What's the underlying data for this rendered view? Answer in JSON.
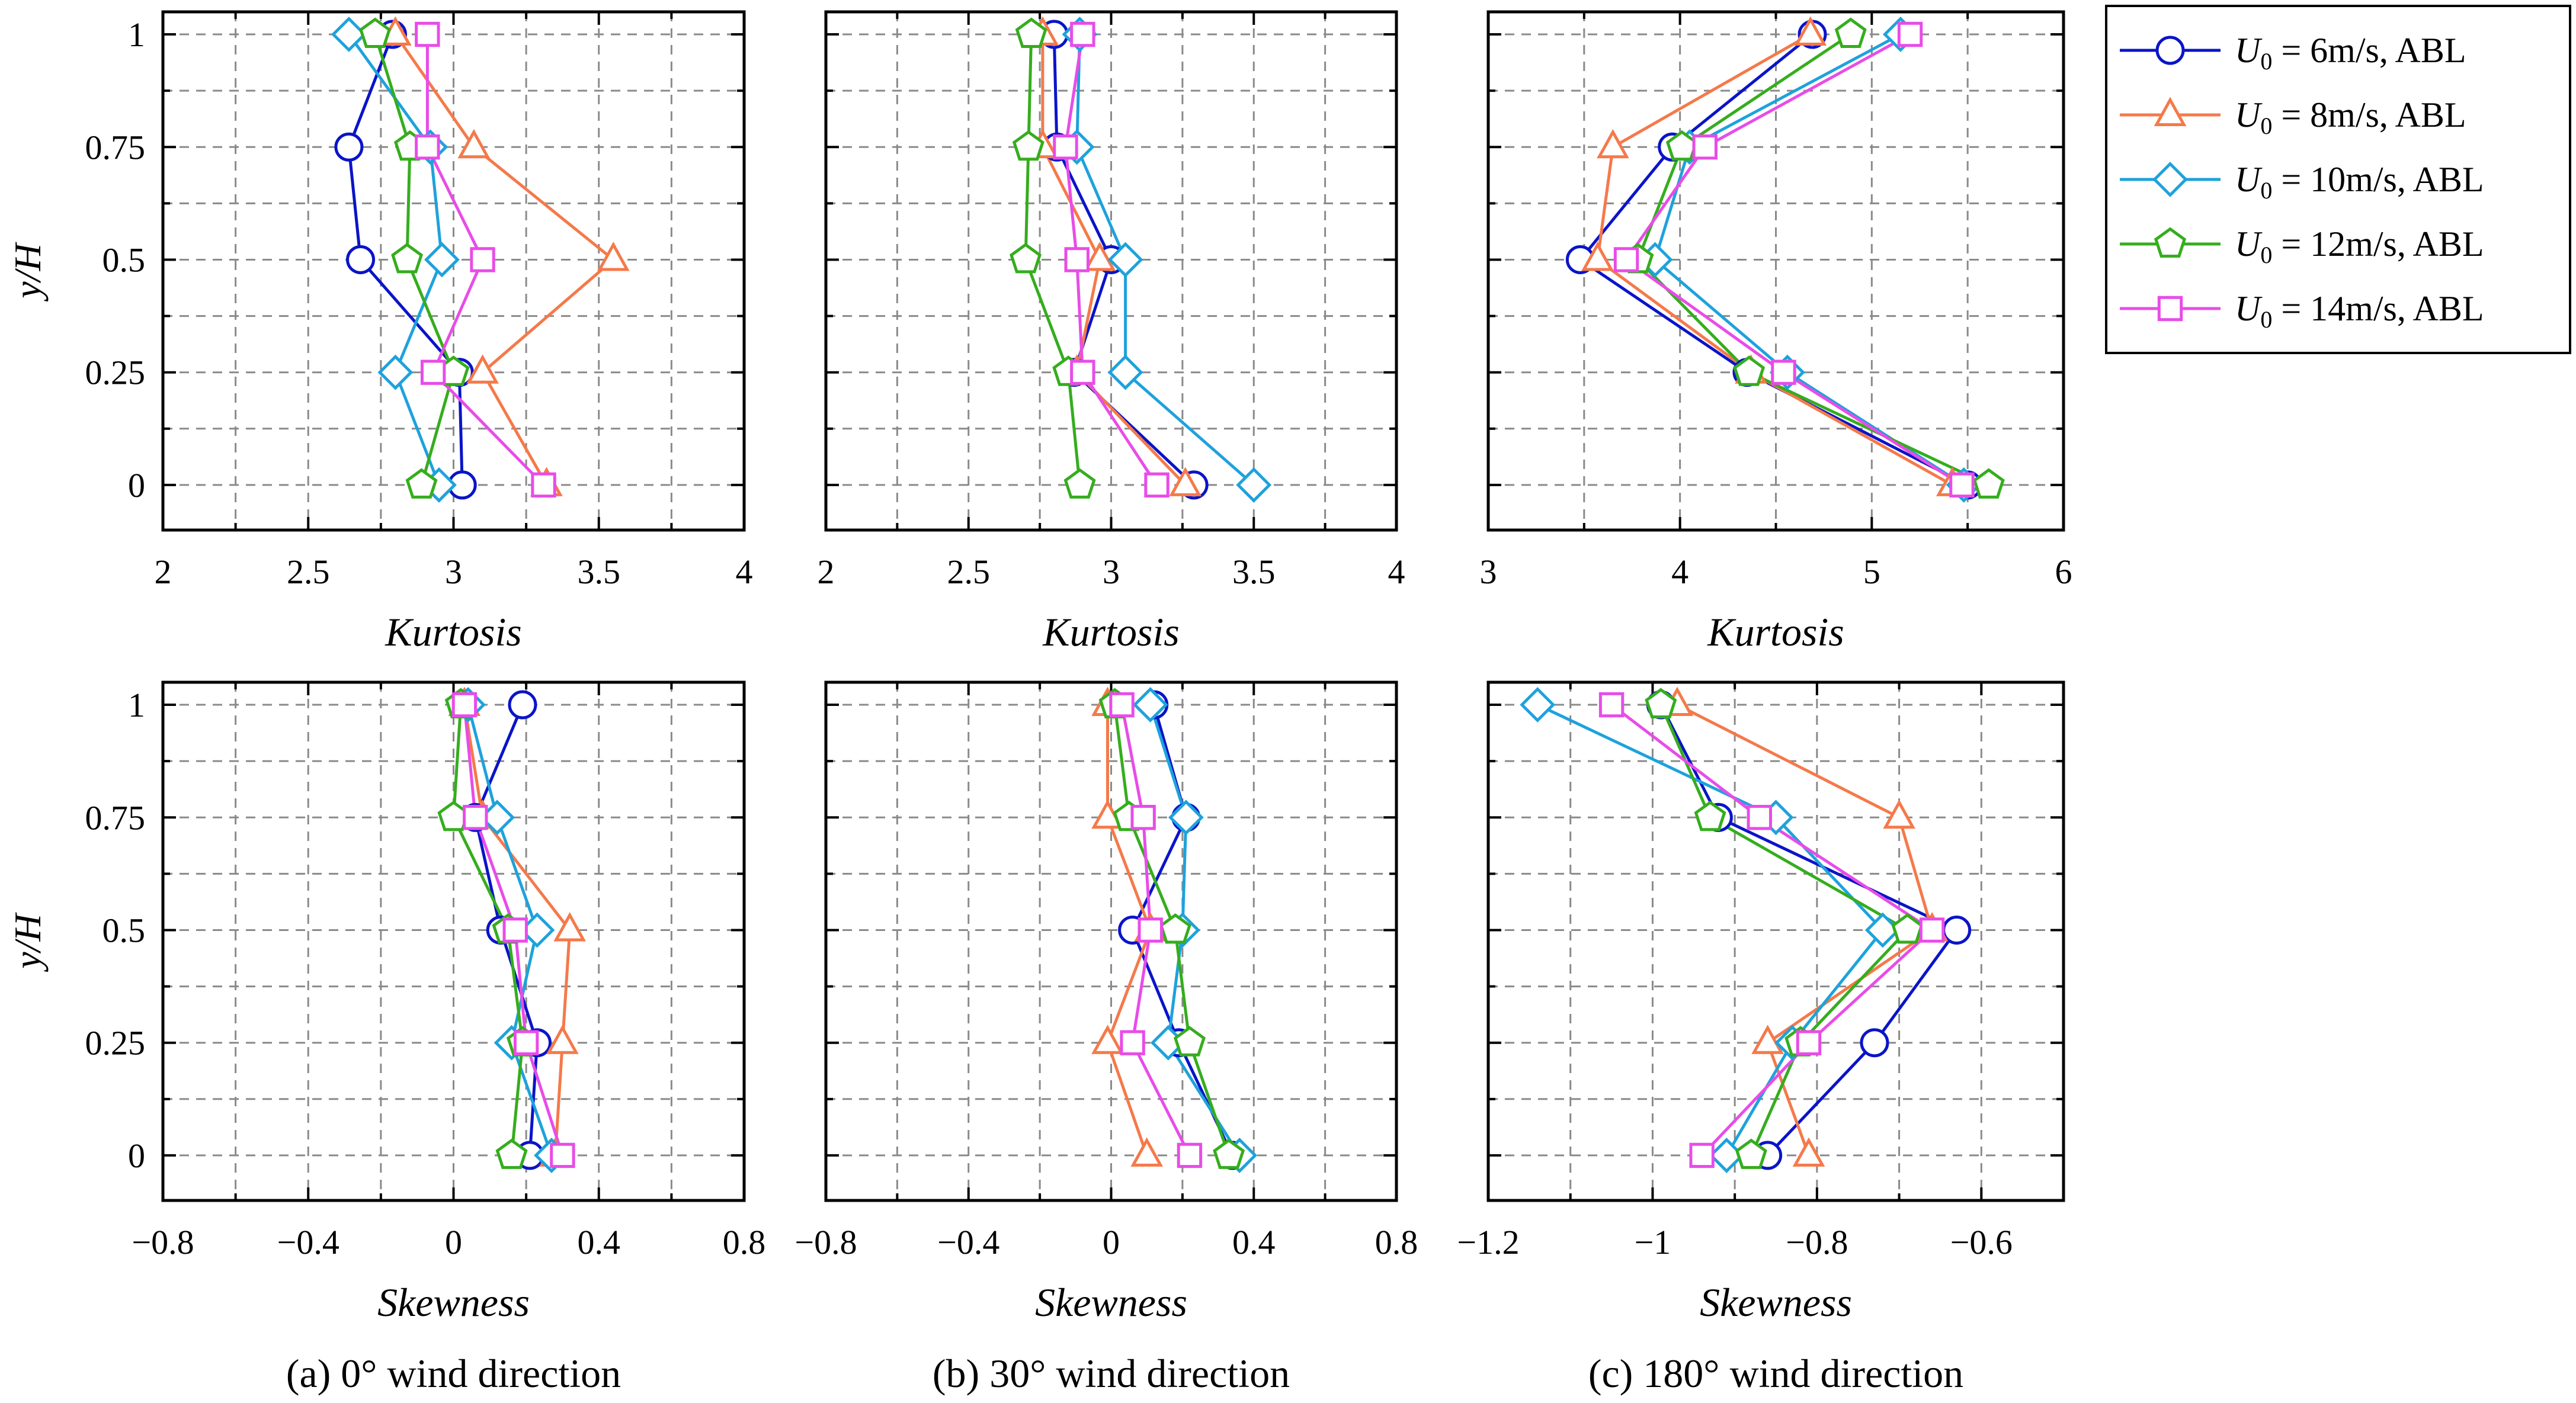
{
  "legend": {
    "entries": [
      {
        "sym": "U",
        "sub": "0",
        "text": " = 6m/s, ABL",
        "marker": "circle",
        "color": "#0a14c8"
      },
      {
        "sym": "U",
        "sub": "0",
        "text": " = 8m/s, ABL",
        "marker": "triangle",
        "color": "#f5794a"
      },
      {
        "sym": "U",
        "sub": "0",
        "text": " = 10m/s, ABL",
        "marker": "diamond",
        "color": "#1ea2dc"
      },
      {
        "sym": "U",
        "sub": "0",
        "text": " = 12m/s, ABL",
        "marker": "pentagon",
        "color": "#35ad1e"
      },
      {
        "sym": "U",
        "sub": "0",
        "text": " = 14m/s, ABL",
        "marker": "square",
        "color": "#e84ce8"
      }
    ]
  },
  "chart_data": [
    {
      "type": "line",
      "panel": "a-kurtosis",
      "xlabel": "Kurtosis",
      "ylabel": "y/H",
      "xlim": [
        2,
        4
      ],
      "ylim": [
        -0.1,
        1.05
      ],
      "xticks": [
        2,
        2.5,
        3,
        3.5,
        4
      ],
      "xtick_labels": [
        "2",
        "2.5",
        "3",
        "3.5",
        "4"
      ],
      "yticks": [
        0,
        0.25,
        0.5,
        0.75,
        1
      ],
      "ytick_labels": [
        "0",
        "0.25",
        "0.5",
        "0.75",
        "1"
      ],
      "show_yticklabels": true,
      "caption": "",
      "y": [
        0,
        0.25,
        0.5,
        0.75,
        1
      ],
      "series": [
        {
          "name": "U0 = 6m/s, ABL",
          "x": [
            3.03,
            3.02,
            2.68,
            2.64,
            2.79
          ]
        },
        {
          "name": "U0 = 8m/s, ABL",
          "x": [
            3.32,
            3.1,
            3.55,
            3.07,
            2.8
          ]
        },
        {
          "name": "U0 = 10m/s, ABL",
          "x": [
            2.95,
            2.8,
            2.96,
            2.92,
            2.64
          ]
        },
        {
          "name": "U0 = 12m/s, ABL",
          "x": [
            2.89,
            3.0,
            2.84,
            2.85,
            2.73
          ]
        },
        {
          "name": "U0 = 14m/s, ABL",
          "x": [
            3.31,
            2.93,
            3.1,
            2.91,
            2.91
          ]
        }
      ]
    },
    {
      "type": "line",
      "panel": "b-kurtosis",
      "xlabel": "Kurtosis",
      "ylabel": "",
      "xlim": [
        2,
        4
      ],
      "ylim": [
        -0.1,
        1.05
      ],
      "xticks": [
        2,
        2.5,
        3,
        3.5,
        4
      ],
      "xtick_labels": [
        "2",
        "2.5",
        "3",
        "3.5",
        "4"
      ],
      "yticks": [
        0,
        0.25,
        0.5,
        0.75,
        1
      ],
      "ytick_labels": [
        "0",
        "0.25",
        "0.5",
        "0.75",
        "1"
      ],
      "show_yticklabels": false,
      "caption": "",
      "y": [
        0,
        0.25,
        0.5,
        0.75,
        1
      ],
      "series": [
        {
          "name": "U0 = 6m/s, ABL",
          "x": [
            3.29,
            2.87,
            3.0,
            2.81,
            2.8
          ]
        },
        {
          "name": "U0 = 8m/s, ABL",
          "x": [
            3.26,
            2.88,
            2.96,
            2.76,
            2.76
          ]
        },
        {
          "name": "U0 = 10m/s, ABL",
          "x": [
            3.5,
            3.05,
            3.05,
            2.88,
            2.89
          ]
        },
        {
          "name": "U0 = 12m/s, ABL",
          "x": [
            2.89,
            2.85,
            2.7,
            2.71,
            2.72
          ]
        },
        {
          "name": "U0 = 14m/s, ABL",
          "x": [
            3.16,
            2.9,
            2.88,
            2.84,
            2.9
          ]
        }
      ]
    },
    {
      "type": "line",
      "panel": "c-kurtosis",
      "xlabel": "Kurtosis",
      "ylabel": "",
      "xlim": [
        3,
        6
      ],
      "ylim": [
        -0.1,
        1.05
      ],
      "xticks": [
        3,
        4,
        5,
        6
      ],
      "xtick_labels": [
        "3",
        "4",
        "5",
        "6"
      ],
      "yticks": [
        0,
        0.25,
        0.5,
        0.75,
        1
      ],
      "ytick_labels": [
        "0",
        "0.25",
        "0.5",
        "0.75",
        "1"
      ],
      "show_yticklabels": false,
      "caption": "",
      "y": [
        0,
        0.25,
        0.5,
        0.75,
        1
      ],
      "series": [
        {
          "name": "U0 = 6m/s, ABL",
          "x": [
            5.5,
            4.35,
            3.48,
            3.96,
            4.69
          ]
        },
        {
          "name": "U0 = 8m/s, ABL",
          "x": [
            5.42,
            4.37,
            3.57,
            3.65,
            4.68
          ]
        },
        {
          "name": "U0 = 10m/s, ABL",
          "x": [
            5.48,
            4.56,
            3.87,
            4.05,
            5.15
          ]
        },
        {
          "name": "U0 = 12m/s, ABL",
          "x": [
            5.61,
            4.36,
            3.78,
            4.01,
            4.89
          ]
        },
        {
          "name": "U0 = 14m/s, ABL",
          "x": [
            5.47,
            4.54,
            3.72,
            4.13,
            5.2
          ]
        }
      ]
    },
    {
      "type": "line",
      "panel": "a-skewness",
      "xlabel": "Skewness",
      "ylabel": "y/H",
      "xlim": [
        -0.8,
        0.8
      ],
      "ylim": [
        -0.1,
        1.05
      ],
      "xticks": [
        -0.8,
        -0.4,
        0,
        0.4,
        0.8
      ],
      "xtick_labels": [
        "−0.8",
        "−0.4",
        "0",
        "0.4",
        "0.8"
      ],
      "yticks": [
        0,
        0.25,
        0.5,
        0.75,
        1
      ],
      "ytick_labels": [
        "0",
        "0.25",
        "0.5",
        "0.75",
        "1"
      ],
      "show_yticklabels": true,
      "caption": "(a) 0° wind direction",
      "y": [
        0,
        0.25,
        0.5,
        0.75,
        1
      ],
      "series": [
        {
          "name": "U0 = 6m/s, ABL",
          "x": [
            0.21,
            0.23,
            0.13,
            0.06,
            0.19
          ]
        },
        {
          "name": "U0 = 8m/s, ABL",
          "x": [
            0.28,
            0.3,
            0.32,
            0.08,
            0.03
          ]
        },
        {
          "name": "U0 = 10m/s, ABL",
          "x": [
            0.27,
            0.16,
            0.23,
            0.12,
            0.04
          ]
        },
        {
          "name": "U0 = 12m/s, ABL",
          "x": [
            0.16,
            0.19,
            0.15,
            0.0,
            0.02
          ]
        },
        {
          "name": "U0 = 14m/s, ABL",
          "x": [
            0.3,
            0.2,
            0.17,
            0.06,
            0.03
          ]
        }
      ]
    },
    {
      "type": "line",
      "panel": "b-skewness",
      "xlabel": "Skewness",
      "ylabel": "",
      "xlim": [
        -0.8,
        0.8
      ],
      "ylim": [
        -0.1,
        1.05
      ],
      "xticks": [
        -0.8,
        -0.4,
        0,
        0.4,
        0.8
      ],
      "xtick_labels": [
        "−0.8",
        "−0.4",
        "0",
        "0.4",
        "0.8"
      ],
      "yticks": [
        0,
        0.25,
        0.5,
        0.75,
        1
      ],
      "ytick_labels": [
        "0",
        "0.25",
        "0.5",
        "0.75",
        "1"
      ],
      "show_yticklabels": false,
      "caption": "(b) 30° wind direction",
      "y": [
        0,
        0.25,
        0.5,
        0.75,
        1
      ],
      "series": [
        {
          "name": "U0 = 6m/s, ABL",
          "x": [
            0.34,
            0.19,
            0.06,
            0.21,
            0.12
          ]
        },
        {
          "name": "U0 = 8m/s, ABL",
          "x": [
            0.1,
            -0.01,
            0.11,
            -0.01,
            -0.01
          ]
        },
        {
          "name": "U0 = 10m/s, ABL",
          "x": [
            0.36,
            0.16,
            0.2,
            0.21,
            0.11
          ]
        },
        {
          "name": "U0 = 12m/s, ABL",
          "x": [
            0.33,
            0.22,
            0.18,
            0.05,
            0.01
          ]
        },
        {
          "name": "U0 = 14m/s, ABL",
          "x": [
            0.22,
            0.06,
            0.11,
            0.09,
            0.03
          ]
        }
      ]
    },
    {
      "type": "line",
      "panel": "c-skewness",
      "xlabel": "Skewness",
      "ylabel": "",
      "xlim": [
        -1.2,
        -0.5
      ],
      "ylim": [
        -0.1,
        1.05
      ],
      "xticks": [
        -1.2,
        -1,
        -0.8,
        -0.6
      ],
      "xtick_labels": [
        "−1.2",
        "−1",
        "−0.8",
        "−0.6"
      ],
      "yticks": [
        0,
        0.25,
        0.5,
        0.75,
        1
      ],
      "ytick_labels": [
        "0",
        "0.25",
        "0.5",
        "0.75",
        "1"
      ],
      "show_yticklabels": false,
      "caption": "(c) 180° wind direction",
      "y": [
        0,
        0.25,
        0.5,
        0.75,
        1
      ],
      "series": [
        {
          "name": "U0 = 6m/s, ABL",
          "x": [
            -0.86,
            -0.73,
            -0.63,
            -0.92,
            -0.99
          ]
        },
        {
          "name": "U0 = 8m/s, ABL",
          "x": [
            -0.81,
            -0.86,
            -0.66,
            -0.7,
            -0.97
          ]
        },
        {
          "name": "U0 = 10m/s, ABL",
          "x": [
            -0.91,
            -0.83,
            -0.72,
            -0.85,
            -1.14
          ]
        },
        {
          "name": "U0 = 12m/s, ABL",
          "x": [
            -0.88,
            -0.82,
            -0.69,
            -0.93,
            -0.99
          ]
        },
        {
          "name": "U0 = 14m/s, ABL",
          "x": [
            -0.94,
            -0.81,
            -0.66,
            -0.87,
            -1.05
          ]
        }
      ]
    }
  ]
}
